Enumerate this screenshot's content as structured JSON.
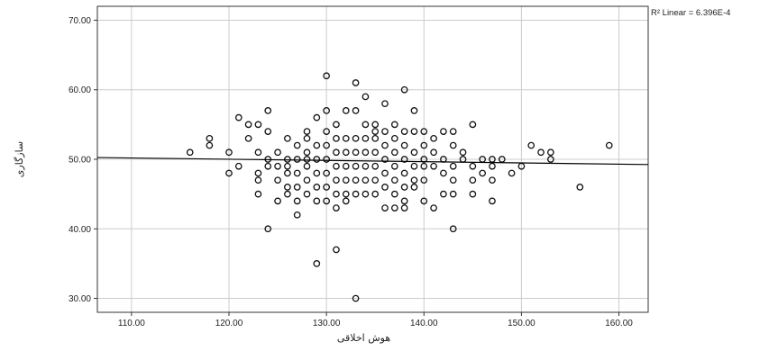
{
  "chart_data": {
    "type": "scatter",
    "xlabel": "هوش اخلاقی",
    "ylabel": "سازگاری",
    "xlim": [
      106.5,
      163
    ],
    "ylim": [
      28,
      72
    ],
    "xticks": [
      "110.00",
      "120.00",
      "130.00",
      "140.00",
      "150.00",
      "160.00"
    ],
    "yticks": [
      "30.00",
      "40.00",
      "50.00",
      "60.00",
      "70.00"
    ],
    "grid": true,
    "marker": "open-circle",
    "colors": {
      "grid": "#cccccc",
      "frame": "#333333",
      "points": "#111111",
      "fit_line": "#000000"
    },
    "fit_line": {
      "label": "R² Linear = 6.396E-4",
      "x": [
        106.5,
        163
      ],
      "y": [
        50.25,
        49.25
      ]
    },
    "points": [
      [
        116,
        51
      ],
      [
        118,
        52
      ],
      [
        118,
        53
      ],
      [
        120,
        48
      ],
      [
        120,
        51
      ],
      [
        121,
        49
      ],
      [
        121,
        56
      ],
      [
        122,
        55
      ],
      [
        122,
        53
      ],
      [
        123,
        55
      ],
      [
        123,
        51
      ],
      [
        123,
        48
      ],
      [
        123,
        45
      ],
      [
        123,
        47
      ],
      [
        124,
        40
      ],
      [
        124,
        54
      ],
      [
        124,
        57
      ],
      [
        124,
        49
      ],
      [
        124,
        50
      ],
      [
        125,
        49
      ],
      [
        125,
        47
      ],
      [
        125,
        51
      ],
      [
        125,
        44
      ],
      [
        126,
        46
      ],
      [
        126,
        49
      ],
      [
        126,
        50
      ],
      [
        126,
        53
      ],
      [
        126,
        48
      ],
      [
        126,
        45
      ],
      [
        127,
        48
      ],
      [
        127,
        50
      ],
      [
        127,
        52
      ],
      [
        127,
        46
      ],
      [
        127,
        44
      ],
      [
        127,
        42
      ],
      [
        128,
        45
      ],
      [
        128,
        47
      ],
      [
        128,
        49
      ],
      [
        128,
        51
      ],
      [
        128,
        53
      ],
      [
        128,
        54
      ],
      [
        128,
        50
      ],
      [
        129,
        35
      ],
      [
        129,
        44
      ],
      [
        129,
        48
      ],
      [
        129,
        50
      ],
      [
        129,
        52
      ],
      [
        129,
        56
      ],
      [
        129,
        46
      ],
      [
        130,
        62
      ],
      [
        130,
        44
      ],
      [
        130,
        46
      ],
      [
        130,
        48
      ],
      [
        130,
        50
      ],
      [
        130,
        52
      ],
      [
        130,
        54
      ],
      [
        130,
        57
      ],
      [
        131,
        37
      ],
      [
        131,
        43
      ],
      [
        131,
        45
      ],
      [
        131,
        47
      ],
      [
        131,
        49
      ],
      [
        131,
        51
      ],
      [
        131,
        53
      ],
      [
        131,
        55
      ],
      [
        132,
        45
      ],
      [
        132,
        47
      ],
      [
        132,
        49
      ],
      [
        132,
        51
      ],
      [
        132,
        53
      ],
      [
        132,
        57
      ],
      [
        132,
        44
      ],
      [
        133,
        30
      ],
      [
        133,
        61
      ],
      [
        133,
        45
      ],
      [
        133,
        47
      ],
      [
        133,
        49
      ],
      [
        133,
        51
      ],
      [
        133,
        53
      ],
      [
        133,
        57
      ],
      [
        134,
        45
      ],
      [
        134,
        47
      ],
      [
        134,
        49
      ],
      [
        134,
        51
      ],
      [
        134,
        53
      ],
      [
        134,
        55
      ],
      [
        134,
        59
      ],
      [
        135,
        45
      ],
      [
        135,
        47
      ],
      [
        135,
        49
      ],
      [
        135,
        51
      ],
      [
        135,
        53
      ],
      [
        135,
        55
      ],
      [
        135,
        54
      ],
      [
        136,
        43
      ],
      [
        136,
        46
      ],
      [
        136,
        48
      ],
      [
        136,
        50
      ],
      [
        136,
        52
      ],
      [
        136,
        54
      ],
      [
        136,
        58
      ],
      [
        137,
        43
      ],
      [
        137,
        45
      ],
      [
        137,
        47
      ],
      [
        137,
        49
      ],
      [
        137,
        51
      ],
      [
        137,
        53
      ],
      [
        137,
        55
      ],
      [
        138,
        43
      ],
      [
        138,
        44
      ],
      [
        138,
        46
      ],
      [
        138,
        48
      ],
      [
        138,
        50
      ],
      [
        138,
        52
      ],
      [
        138,
        54
      ],
      [
        138,
        60
      ],
      [
        139,
        46
      ],
      [
        139,
        49
      ],
      [
        139,
        51
      ],
      [
        139,
        54
      ],
      [
        139,
        57
      ],
      [
        139,
        47
      ],
      [
        140,
        44
      ],
      [
        140,
        47
      ],
      [
        140,
        50
      ],
      [
        140,
        52
      ],
      [
        140,
        54
      ],
      [
        140,
        49
      ],
      [
        141,
        43
      ],
      [
        141,
        49
      ],
      [
        141,
        51
      ],
      [
        141,
        53
      ],
      [
        142,
        45
      ],
      [
        142,
        48
      ],
      [
        142,
        50
      ],
      [
        142,
        54
      ],
      [
        143,
        40
      ],
      [
        143,
        45
      ],
      [
        143,
        47
      ],
      [
        143,
        49
      ],
      [
        143,
        52
      ],
      [
        143,
        54
      ],
      [
        144,
        50
      ],
      [
        144,
        51
      ],
      [
        145,
        45
      ],
      [
        145,
        47
      ],
      [
        145,
        49
      ],
      [
        145,
        55
      ],
      [
        146,
        48
      ],
      [
        146,
        50
      ],
      [
        147,
        44
      ],
      [
        147,
        47
      ],
      [
        147,
        49
      ],
      [
        147,
        50
      ],
      [
        148,
        50
      ],
      [
        149,
        48
      ],
      [
        150,
        49
      ],
      [
        151,
        52
      ],
      [
        152,
        51
      ],
      [
        153,
        50
      ],
      [
        153,
        51
      ],
      [
        156,
        46
      ],
      [
        159,
        52
      ]
    ]
  }
}
